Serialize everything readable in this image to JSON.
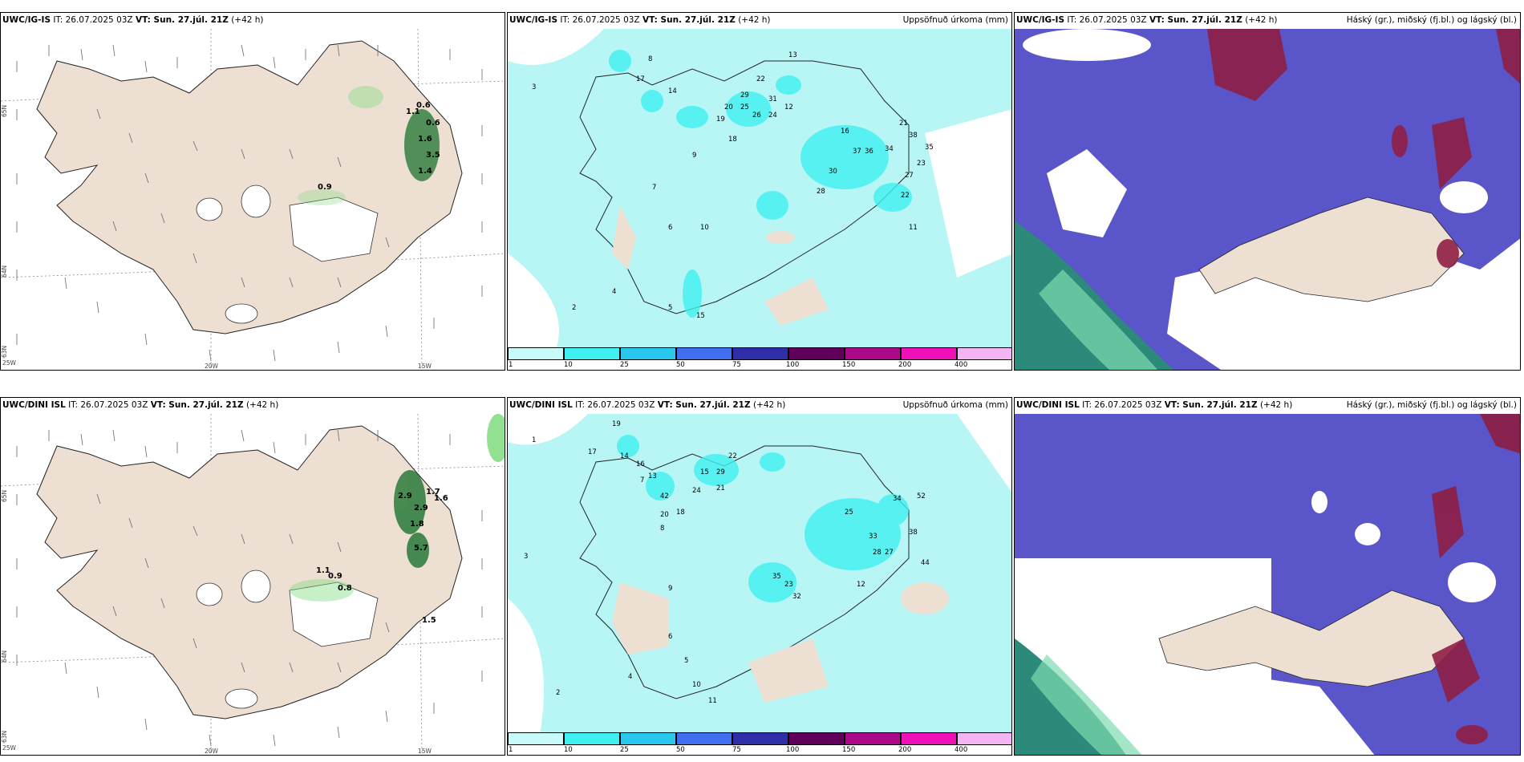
{
  "colors": {
    "land": "#ede0d2",
    "precip_light": "#b8f6f6",
    "cloud_blue": "#5a55c8",
    "cloud_red": "#8e1e44",
    "ocean_green": "#2c8a7a",
    "wind": "#555555"
  },
  "rows": [
    {
      "model": "UWC/IG-IS",
      "it_label": "IT:",
      "it_value": "26.07.2025 03Z",
      "vt_label": "VT: Sun. 27.júl. 21Z",
      "lead": "(+42 h)",
      "lat_labels": [
        "65N",
        "64N",
        "63N"
      ],
      "lon_labels": [
        "25W",
        "20W",
        "15W"
      ],
      "wind_precip_values": [
        "0.6",
        "0.6",
        "1.1",
        "1.6",
        "3.5",
        "1.4",
        "0.9"
      ],
      "precip_values": [
        "8",
        "13",
        "22",
        "29",
        "31",
        "12",
        "25",
        "26",
        "24",
        "19",
        "20",
        "18",
        "16",
        "37",
        "36",
        "34",
        "38",
        "35",
        "21",
        "30",
        "28",
        "22",
        "27",
        "23",
        "11",
        "10",
        "9",
        "7",
        "6",
        "5",
        "4",
        "3",
        "2",
        "14",
        "15",
        "17"
      ]
    },
    {
      "model": "UWC/DINI ISL",
      "it_label": "IT:",
      "it_value": "26.07.2025 03Z",
      "vt_label": "VT: Sun. 27.júl. 21Z",
      "lead": "(+42 h)",
      "lat_labels": [
        "65N",
        "64N",
        "63N"
      ],
      "lon_labels": [
        "25W",
        "20W",
        "15W"
      ],
      "wind_precip_values": [
        "2.9",
        "1.7",
        "1.6",
        "2.9",
        "1.8",
        "5.7",
        "1.1",
        "0.9",
        "0.8",
        "1.5"
      ],
      "precip_values": [
        "19",
        "17",
        "14",
        "16",
        "13",
        "22",
        "29",
        "21",
        "15",
        "24",
        "42",
        "18",
        "20",
        "52",
        "34",
        "35",
        "38",
        "25",
        "33",
        "44",
        "28",
        "27",
        "32",
        "23",
        "12",
        "9",
        "8",
        "7",
        "6",
        "5",
        "4",
        "3",
        "2",
        "1",
        "10",
        "11"
      ]
    }
  ],
  "precip_title": "Uppsöfnuð úrkoma (mm)",
  "cloud_title": "Háský (gr.), miðský (fj.bl.) og lágský (bl.)",
  "colorbar": {
    "ticks": [
      "1",
      "10",
      "25",
      "50",
      "75",
      "100",
      "150",
      "200",
      "400"
    ],
    "colors": [
      "#c8fafa",
      "#3ff0f0",
      "#29c7ec",
      "#3f6ff0",
      "#2e2ea8",
      "#60005a",
      "#aa0a8a",
      "#f010b8",
      "#f4b6f2"
    ]
  }
}
